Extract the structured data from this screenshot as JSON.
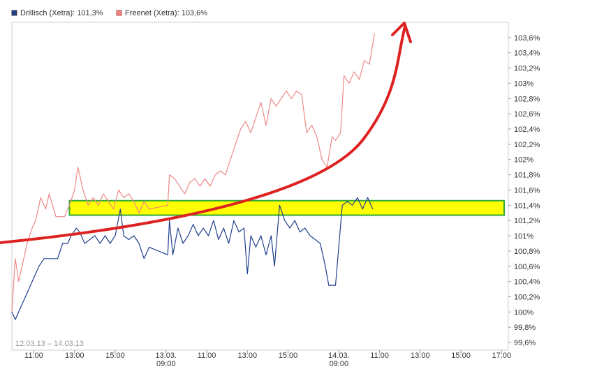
{
  "chart_data": {
    "type": "line",
    "title": "",
    "xlabel": "",
    "ylabel": "",
    "legend": {
      "placement": "top-left",
      "entries": [
        {
          "label": "Drillisch (Xetra): 101,3%",
          "color": "#1f3f8f"
        },
        {
          "label": "Freenet (Xetra): 103,6%",
          "color": "#ee8888"
        }
      ]
    },
    "date_range": "12.03.13 – 14.03.13",
    "ylim": [
      99.5,
      103.8
    ],
    "y_ticks": [
      {
        "value": 99.6,
        "label": "99,6%"
      },
      {
        "value": 99.8,
        "label": "99,8%"
      },
      {
        "value": 100.0,
        "label": "100%"
      },
      {
        "value": 100.2,
        "label": "100,2%"
      },
      {
        "value": 100.4,
        "label": "100,4%"
      },
      {
        "value": 100.6,
        "label": "100,6%"
      },
      {
        "value": 100.8,
        "label": "100,8%"
      },
      {
        "value": 101.0,
        "label": "101%"
      },
      {
        "value": 101.2,
        "label": "101,2%"
      },
      {
        "value": 101.4,
        "label": "101,4%"
      },
      {
        "value": 101.6,
        "label": "101,6%"
      },
      {
        "value": 101.8,
        "label": "101,8%"
      },
      {
        "value": 102.0,
        "label": "102%"
      },
      {
        "value": 102.2,
        "label": "102,2%"
      },
      {
        "value": 102.4,
        "label": "102,4%"
      },
      {
        "value": 102.6,
        "label": "102,6%"
      },
      {
        "value": 102.8,
        "label": "102,8%"
      },
      {
        "value": 103.0,
        "label": "103%"
      },
      {
        "value": 103.2,
        "label": "103,2%"
      },
      {
        "value": 103.4,
        "label": "103,4%"
      },
      {
        "value": 103.6,
        "label": "103,6%"
      }
    ],
    "x_domain": [
      "12.03.13 09:55",
      "14.03.13 17:20"
    ],
    "x_ticks": [
      {
        "at": "12.03.13 11:00",
        "label": "11:00"
      },
      {
        "at": "12.03.13 13:00",
        "label": "13:00"
      },
      {
        "at": "12.03.13 15:00",
        "label": "15:00"
      },
      {
        "at": "13.03.13 09:00",
        "label": "13.03.",
        "sublabel": "09:00"
      },
      {
        "at": "13.03.13 11:00",
        "label": "11:00"
      },
      {
        "at": "13.03.13 13:00",
        "label": "13:00"
      },
      {
        "at": "13.03.13 15:00",
        "label": "15:00"
      },
      {
        "at": "14.03.13 09:00",
        "label": "14.03.",
        "sublabel": "09:00"
      },
      {
        "at": "14.03.13 11:00",
        "label": "11:00"
      },
      {
        "at": "14.03.13 13:00",
        "label": "13:00"
      },
      {
        "at": "14.03.13 15:00",
        "label": "15:00"
      },
      {
        "at": "14.03.13 17:00",
        "label": "17:00"
      }
    ],
    "series": [
      {
        "name": "Drillisch (Xetra): 101,3%",
        "color": "#1f3f8f",
        "points": [
          [
            "12.03.13 09:55",
            100.0
          ],
          [
            "12.03.13 10:05",
            99.9
          ],
          [
            "12.03.13 10:15",
            100.0
          ],
          [
            "12.03.13 10:25",
            100.1
          ],
          [
            "12.03.13 10:35",
            100.2
          ],
          [
            "12.03.13 10:45",
            100.3
          ],
          [
            "12.03.13 10:55",
            100.4
          ],
          [
            "12.03.13 11:05",
            100.5
          ],
          [
            "12.03.13 11:15",
            100.6
          ],
          [
            "12.03.13 11:30",
            100.7
          ],
          [
            "12.03.13 11:50",
            100.7
          ],
          [
            "12.03.13 12:10",
            100.7
          ],
          [
            "12.03.13 12:25",
            100.9
          ],
          [
            "12.03.13 12:40",
            100.9
          ],
          [
            "12.03.13 12:50",
            101.0
          ],
          [
            "12.03.13 13:05",
            101.1
          ],
          [
            "12.03.13 13:15",
            101.05
          ],
          [
            "12.03.13 13:30",
            100.9
          ],
          [
            "12.03.13 13:45",
            100.95
          ],
          [
            "12.03.13 14:00",
            101.0
          ],
          [
            "12.03.13 14:15",
            100.9
          ],
          [
            "12.03.13 14:30",
            101.0
          ],
          [
            "12.03.13 14:45",
            100.9
          ],
          [
            "12.03.13 15:00",
            101.0
          ],
          [
            "12.03.13 15:15",
            101.35
          ],
          [
            "12.03.13 15:25",
            101.0
          ],
          [
            "12.03.13 15:40",
            100.95
          ],
          [
            "12.03.13 15:55",
            101.0
          ],
          [
            "12.03.13 16:10",
            100.9
          ],
          [
            "12.03.13 16:25",
            100.7
          ],
          [
            "12.03.13 16:40",
            100.85
          ],
          [
            "13.03.13 09:05",
            100.75
          ],
          [
            "13.03.13 09:10",
            101.2
          ],
          [
            "13.03.13 09:20",
            100.75
          ],
          [
            "13.03.13 09:35",
            101.1
          ],
          [
            "13.03.13 09:50",
            100.9
          ],
          [
            "13.03.13 10:05",
            101.0
          ],
          [
            "13.03.13 10:20",
            101.15
          ],
          [
            "13.03.13 10:35",
            101.0
          ],
          [
            "13.03.13 10:50",
            101.1
          ],
          [
            "13.03.13 11:05",
            101.0
          ],
          [
            "13.03.13 11:20",
            101.2
          ],
          [
            "13.03.13 11:35",
            100.95
          ],
          [
            "13.03.13 11:50",
            101.1
          ],
          [
            "13.03.13 12:05",
            100.9
          ],
          [
            "13.03.13 12:20",
            101.2
          ],
          [
            "13.03.13 12:35",
            101.05
          ],
          [
            "13.03.13 12:50",
            101.1
          ],
          [
            "13.03.13 13:00",
            100.5
          ],
          [
            "13.03.13 13:10",
            101.0
          ],
          [
            "13.03.13 13:25",
            100.85
          ],
          [
            "13.03.13 13:40",
            101.0
          ],
          [
            "13.03.13 13:55",
            100.75
          ],
          [
            "13.03.13 14:10",
            101.0
          ],
          [
            "13.03.13 14:20",
            100.6
          ],
          [
            "13.03.13 14:35",
            101.4
          ],
          [
            "13.03.13 14:50",
            101.2
          ],
          [
            "13.03.13 15:05",
            101.1
          ],
          [
            "13.03.13 15:20",
            101.2
          ],
          [
            "13.03.13 15:35",
            101.05
          ],
          [
            "13.03.13 15:50",
            101.1
          ],
          [
            "13.03.13 16:05",
            101.0
          ],
          [
            "13.03.13 16:20",
            100.95
          ],
          [
            "13.03.13 16:35",
            100.9
          ],
          [
            "13.03.13 16:50",
            100.6
          ],
          [
            "13.03.13 17:00",
            100.35
          ],
          [
            "13.03.13 17:20",
            100.35
          ],
          [
            "14.03.13 09:10",
            101.4
          ],
          [
            "14.03.13 09:25",
            101.45
          ],
          [
            "14.03.13 09:40",
            101.4
          ],
          [
            "14.03.13 09:55",
            101.5
          ],
          [
            "14.03.13 10:10",
            101.35
          ],
          [
            "14.03.13 10:25",
            101.5
          ],
          [
            "14.03.13 10:40",
            101.35
          ]
        ]
      },
      {
        "name": "Freenet (Xetra): 103,6%",
        "color": "#ee8888",
        "points": [
          [
            "12.03.13 09:55",
            100.0
          ],
          [
            "12.03.13 10:05",
            100.7
          ],
          [
            "12.03.13 10:15",
            100.4
          ],
          [
            "12.03.13 10:25",
            100.6
          ],
          [
            "12.03.13 10:40",
            100.9
          ],
          [
            "12.03.13 10:55",
            101.1
          ],
          [
            "12.03.13 11:05",
            101.2
          ],
          [
            "12.03.13 11:20",
            101.5
          ],
          [
            "12.03.13 11:35",
            101.35
          ],
          [
            "12.03.13 11:45",
            101.55
          ],
          [
            "12.03.13 12:05",
            101.25
          ],
          [
            "12.03.13 12:30",
            101.25
          ],
          [
            "12.03.13 12:45",
            101.4
          ],
          [
            "12.03.13 13:00",
            101.6
          ],
          [
            "12.03.13 13:10",
            101.9
          ],
          [
            "12.03.13 13:25",
            101.6
          ],
          [
            "12.03.13 13:40",
            101.4
          ],
          [
            "12.03.13 13:55",
            101.5
          ],
          [
            "12.03.13 14:10",
            101.4
          ],
          [
            "12.03.13 14:25",
            101.55
          ],
          [
            "12.03.13 14:40",
            101.45
          ],
          [
            "12.03.13 14:55",
            101.35
          ],
          [
            "12.03.13 15:10",
            101.6
          ],
          [
            "12.03.13 15:25",
            101.5
          ],
          [
            "12.03.13 15:40",
            101.55
          ],
          [
            "12.03.13 15:55",
            101.45
          ],
          [
            "12.03.13 16:10",
            101.3
          ],
          [
            "12.03.13 16:25",
            101.45
          ],
          [
            "12.03.13 16:40",
            101.35
          ],
          [
            "13.03.13 09:05",
            101.4
          ],
          [
            "13.03.13 09:10",
            101.8
          ],
          [
            "13.03.13 09:25",
            101.75
          ],
          [
            "13.03.13 09:40",
            101.65
          ],
          [
            "13.03.13 09:55",
            101.55
          ],
          [
            "13.03.13 10:10",
            101.7
          ],
          [
            "13.03.13 10:25",
            101.75
          ],
          [
            "13.03.13 10:40",
            101.65
          ],
          [
            "13.03.13 10:55",
            101.75
          ],
          [
            "13.03.13 11:10",
            101.65
          ],
          [
            "13.03.13 11:25",
            101.8
          ],
          [
            "13.03.13 11:40",
            101.85
          ],
          [
            "13.03.13 11:55",
            101.8
          ],
          [
            "13.03.13 12:10",
            102.0
          ],
          [
            "13.03.13 12:25",
            102.2
          ],
          [
            "13.03.13 12:40",
            102.4
          ],
          [
            "13.03.13 12:55",
            102.5
          ],
          [
            "13.03.13 13:10",
            102.35
          ],
          [
            "13.03.13 13:25",
            102.55
          ],
          [
            "13.03.13 13:40",
            102.75
          ],
          [
            "13.03.13 13:55",
            102.45
          ],
          [
            "13.03.13 14:10",
            102.8
          ],
          [
            "13.03.13 14:25",
            102.7
          ],
          [
            "13.03.13 14:40",
            102.8
          ],
          [
            "13.03.13 14:55",
            102.9
          ],
          [
            "13.03.13 15:10",
            102.8
          ],
          [
            "13.03.13 15:25",
            102.9
          ],
          [
            "13.03.13 15:40",
            102.85
          ],
          [
            "13.03.13 15:55",
            102.35
          ],
          [
            "13.03.13 16:10",
            102.45
          ],
          [
            "13.03.13 16:25",
            102.3
          ],
          [
            "13.03.13 16:40",
            102.0
          ],
          [
            "13.03.13 16:55",
            101.9
          ],
          [
            "13.03.13 17:10",
            102.3
          ],
          [
            "13.03.13 17:20",
            102.25
          ],
          [
            "14.03.13 09:05",
            102.35
          ],
          [
            "14.03.13 09:15",
            103.1
          ],
          [
            "14.03.13 09:30",
            103.0
          ],
          [
            "14.03.13 09:45",
            103.15
          ],
          [
            "14.03.13 10:00",
            103.05
          ],
          [
            "14.03.13 10:15",
            103.3
          ],
          [
            "14.03.13 10:30",
            103.25
          ],
          [
            "14.03.13 10:45",
            103.65
          ]
        ]
      }
    ],
    "annotations": [
      {
        "type": "highlight-band",
        "color": "#ffff00",
        "border": "#33aa33",
        "y_range": [
          101.27,
          101.46
        ],
        "x_range": [
          "12.03.13 12:45",
          "14.03.13 17:20"
        ]
      },
      {
        "type": "curved-arrow",
        "color": "#dd2222",
        "direction": "up-right"
      }
    ]
  }
}
